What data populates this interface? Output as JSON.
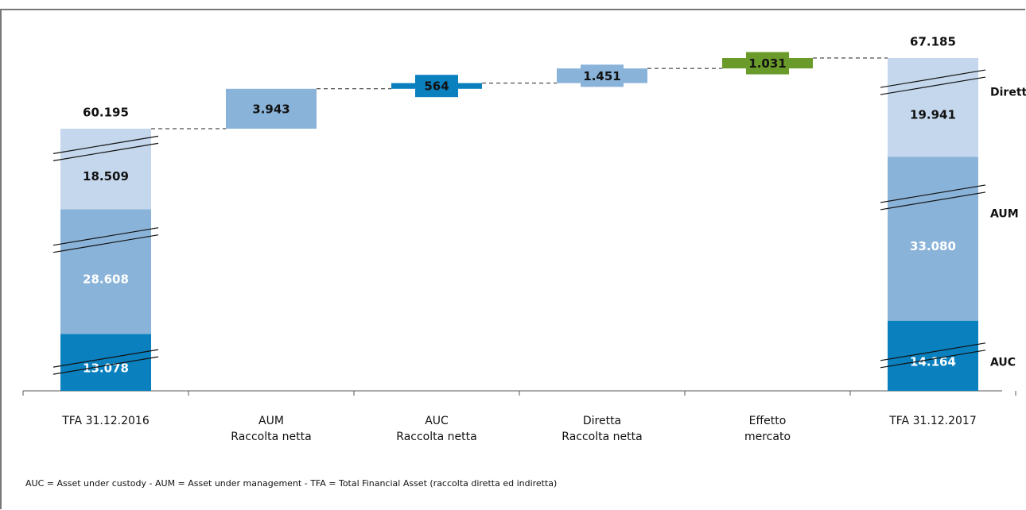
{
  "chart_data": {
    "type": "waterfall",
    "categories": [
      [
        "TFA 31.12.2016"
      ],
      [
        "AUM",
        "Raccolta netta"
      ],
      [
        "AUC",
        "Raccolta netta"
      ],
      [
        "Diretta",
        "Raccolta netta"
      ],
      [
        "Effetto",
        "mercato"
      ],
      [
        "TFA 31.12.2017"
      ]
    ],
    "series": [
      {
        "name": "AUC",
        "color": "#0a80bf",
        "values": [
          13078,
          null,
          null,
          null,
          null,
          14164
        ],
        "value_labels": [
          "13.078",
          null,
          null,
          null,
          null,
          "14.164"
        ]
      },
      {
        "name": "AUM",
        "color": "#8ab3d9",
        "values": [
          28608,
          null,
          null,
          null,
          null,
          33080
        ],
        "value_labels": [
          "28.608",
          null,
          null,
          null,
          null,
          "33.080"
        ]
      },
      {
        "name": "Diretta",
        "color": "#c5d7ec",
        "values": [
          18509,
          null,
          null,
          null,
          null,
          19941
        ],
        "value_labels": [
          "18.509",
          null,
          null,
          null,
          null,
          "19.941"
        ]
      }
    ],
    "totals": {
      "values": [
        60195,
        null,
        null,
        null,
        null,
        67185
      ],
      "value_labels": [
        "60.195",
        null,
        null,
        null,
        null,
        "67.185"
      ]
    },
    "steps": {
      "values": [
        null,
        3943,
        564,
        1451,
        1031,
        null
      ],
      "value_labels": [
        null,
        "3.943",
        "564",
        "1.451",
        "1.031",
        null
      ],
      "colors": [
        null,
        "#8ab3d9",
        "#0a80bf",
        "#8ab3d9",
        "#6a9a2a",
        null
      ]
    },
    "footnote": "AUC = Asset under custody - AUM = Asset under management - TFA = Total Financial Asset (raccolta diretta ed indiretta)"
  }
}
